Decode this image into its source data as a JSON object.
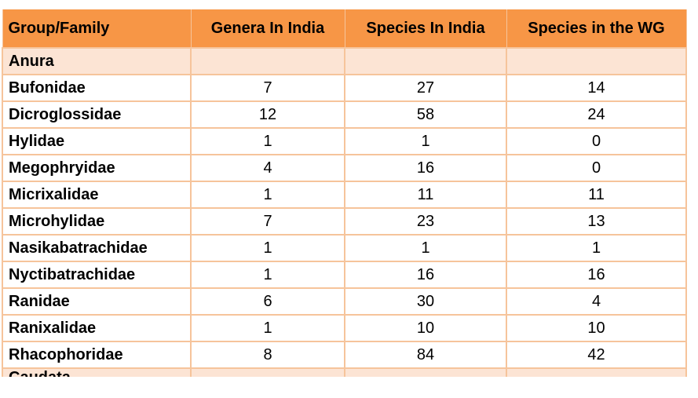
{
  "table": {
    "headers": [
      "Group/Family",
      "Genera In India",
      "Species In India",
      "Species in the WG"
    ],
    "group_label": "Anura",
    "rows": [
      {
        "family": "Bufonidae",
        "genera": "7",
        "species_india": "27",
        "species_wg": "14"
      },
      {
        "family": "Dicroglossidae",
        "genera": "12",
        "species_india": "58",
        "species_wg": "24"
      },
      {
        "family": "Hylidae",
        "genera": "1",
        "species_india": "1",
        "species_wg": "0"
      },
      {
        "family": "Megophryidae",
        "genera": "4",
        "species_india": "16",
        "species_wg": "0"
      },
      {
        "family": "Micrixalidae",
        "genera": "1",
        "species_india": "11",
        "species_wg": "11"
      },
      {
        "family": "Microhylidae",
        "genera": "7",
        "species_india": "23",
        "species_wg": "13"
      },
      {
        "family": "Nasikabatrachidae",
        "genera": "1",
        "species_india": "1",
        "species_wg": "1"
      },
      {
        "family": "Nyctibatrachidae",
        "genera": "1",
        "species_india": "16",
        "species_wg": "16"
      },
      {
        "family": "Ranidae",
        "genera": "6",
        "species_india": "30",
        "species_wg": "4"
      },
      {
        "family": "Ranixalidae",
        "genera": "1",
        "species_india": "10",
        "species_wg": "10"
      },
      {
        "family": "Rhacophoridae",
        "genera": "8",
        "species_india": "84",
        "species_wg": "42"
      }
    ],
    "next_group_label": "Caudata"
  },
  "colors": {
    "header_bg": "#f79646",
    "group_bg": "#fce4d4",
    "border": "#f6c49b"
  }
}
